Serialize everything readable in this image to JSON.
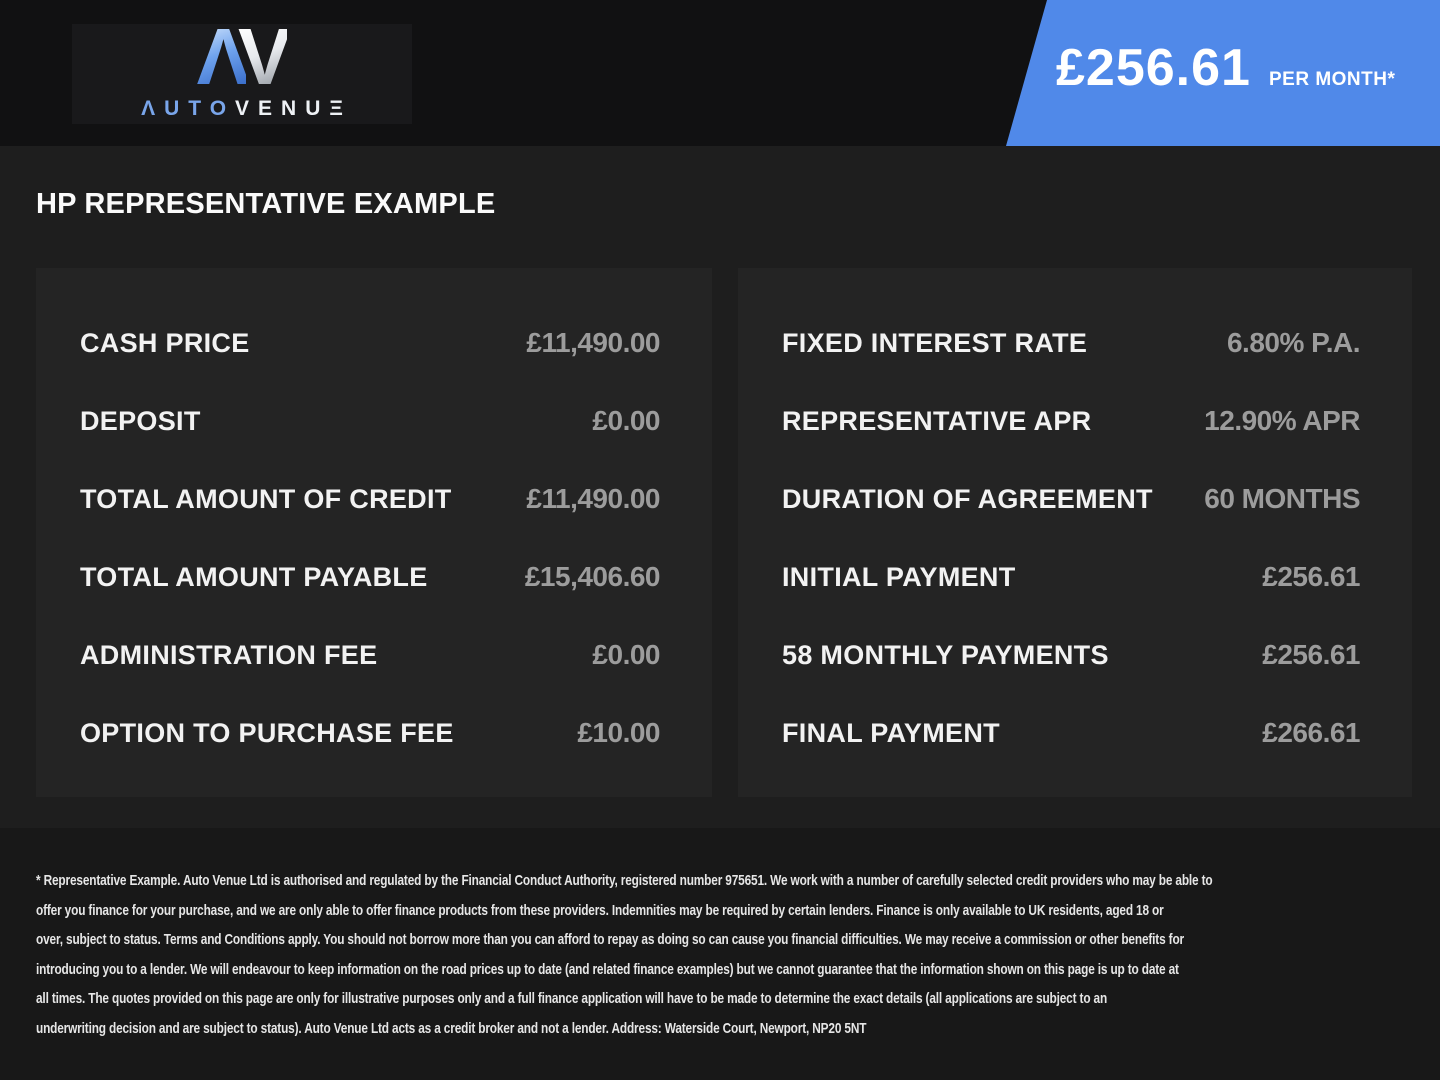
{
  "brand": {
    "monogram_a": "Λ",
    "monogram_v": "V",
    "name_blue": "ΛUTO",
    "name_white": "VENU",
    "name_e": "Ξ"
  },
  "price_banner": {
    "amount": "£256.61",
    "period": "PER MONTH*"
  },
  "page": {
    "title": "HP REPRESENTATIVE EXAMPLE"
  },
  "finance_example": {
    "left": [
      {
        "label": "CASH PRICE",
        "value": "£11,490.00"
      },
      {
        "label": "DEPOSIT",
        "value": "£0.00"
      },
      {
        "label": "TOTAL AMOUNT OF CREDIT",
        "value": "£11,490.00"
      },
      {
        "label": "TOTAL AMOUNT PAYABLE",
        "value": "£15,406.60"
      },
      {
        "label": "ADMINISTRATION FEE",
        "value": "£0.00"
      },
      {
        "label": "OPTION TO PURCHASE FEE",
        "value": "£10.00"
      }
    ],
    "right": [
      {
        "label": "FIXED INTEREST RATE",
        "value": "6.80% P.A."
      },
      {
        "label": "REPRESENTATIVE APR",
        "value": "12.90% APR"
      },
      {
        "label": "DURATION OF AGREEMENT",
        "value": "60 MONTHS"
      },
      {
        "label": "INITIAL PAYMENT",
        "value": "£256.61"
      },
      {
        "label": "58 MONTHLY PAYMENTS",
        "value": "£256.61"
      },
      {
        "label": "FINAL PAYMENT",
        "value": "£266.61"
      }
    ]
  },
  "disclaimer": {
    "lines": [
      "* Representative Example. Auto Venue Ltd is authorised and regulated by the Financial Conduct Authority, registered number 975651. We work with a number of carefully selected credit providers who may be able to",
      "offer you finance for your purchase, and we are only able to offer finance products from these providers. Indemnities may be required by certain lenders. Finance is only available to UK residents, aged 18 or",
      "over, subject to status. Terms and Conditions apply. You should not borrow more than you can afford to repay as doing so can cause you financial difficulties. We may receive a commission or other benefits for",
      "introducing you to a lender. We will endeavour to keep information on the road prices up to date (and related finance examples) but we cannot guarantee that the information shown on this page is up to date at",
      "all times. The quotes provided on this page are only for illustrative purposes only and a full finance application will have to be made to determine the exact details (all applications are subject to an",
      "underwriting decision and are subject to status). Auto Venue Ltd acts as a credit broker and not a lender. Address: Waterside Court, Newport, NP20 5NT"
    ]
  },
  "colors": {
    "accent_blue": "#5089e9",
    "topbar_bg": "#111112",
    "body_bg": "#1e1e1e",
    "panel_bg": "#242424",
    "footer_bg": "#181818",
    "label_text": "#f2f2f2",
    "value_text": "#9c9c9c",
    "logo_blue": "#79a5ea"
  }
}
